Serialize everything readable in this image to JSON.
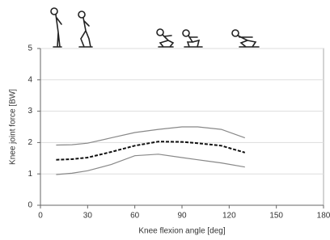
{
  "chart_data": {
    "type": "line",
    "x_label": "Knee flexion angle [deg]",
    "y_label": "Knee joint force [BW]",
    "x": [
      10,
      20,
      30,
      45,
      60,
      75,
      90,
      100,
      115,
      130
    ],
    "series": [
      {
        "color": "#888888",
        "dashed": false,
        "values": [
          1.92,
          1.93,
          1.98,
          2.15,
          2.32,
          2.42,
          2.5,
          2.5,
          2.42,
          2.15
        ]
      },
      {
        "color": "#111111",
        "dashed": true,
        "values": [
          1.45,
          1.47,
          1.52,
          1.7,
          1.9,
          2.03,
          2.02,
          1.98,
          1.9,
          1.68
        ]
      },
      {
        "color": "#888888",
        "dashed": false,
        "values": [
          0.98,
          1.02,
          1.1,
          1.3,
          1.58,
          1.63,
          1.52,
          1.45,
          1.35,
          1.22
        ]
      }
    ],
    "xlim": [
      0,
      180
    ],
    "xticks": [
      0,
      30,
      60,
      90,
      120,
      150,
      180
    ],
    "ylim": [
      0,
      5
    ],
    "yticks": [
      0,
      1,
      2,
      3,
      4,
      5
    ],
    "grid": true
  }
}
